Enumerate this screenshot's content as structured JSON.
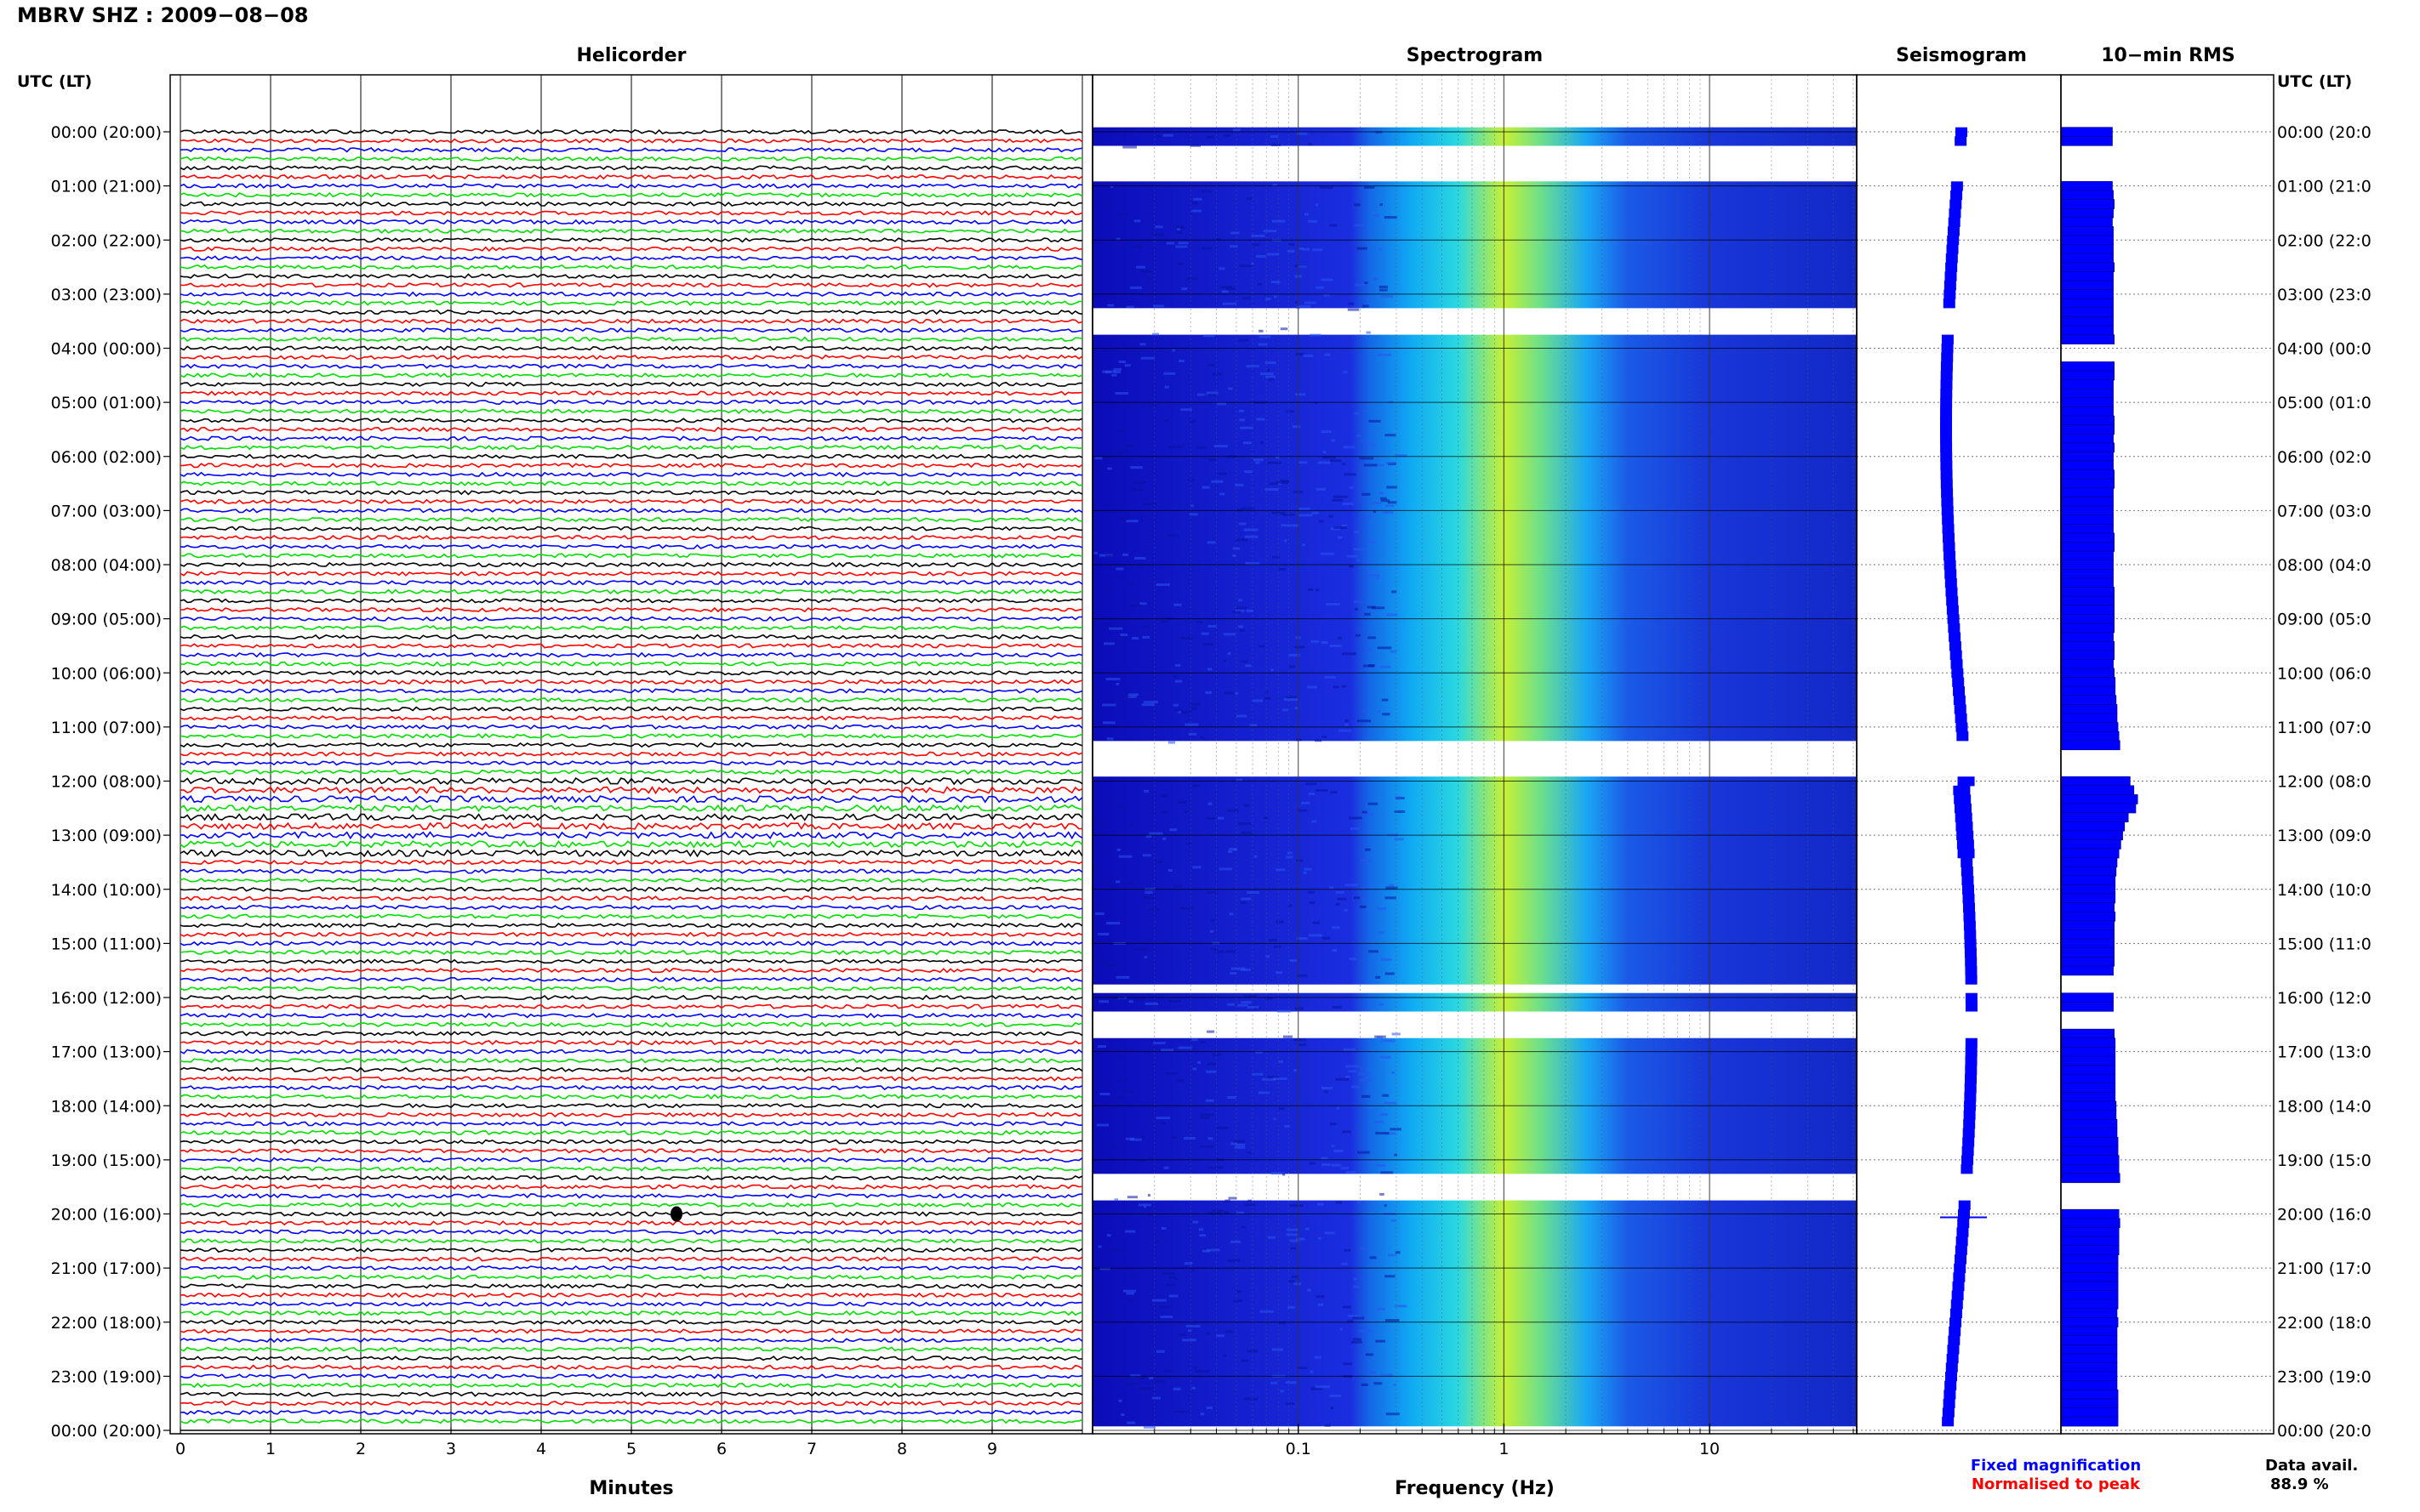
{
  "title": "MBRV SHZ : 2009−08−08",
  "time_axis_label": "UTC (LT)",
  "panels": {
    "helicorder": "Helicorder",
    "spectrogram": "Spectrogram",
    "seismogram": "Seismogram",
    "rms": "10−min RMS"
  },
  "x_labels": {
    "minutes": "Minutes",
    "frequency": "Frequency (Hz)"
  },
  "legend": {
    "fixed": "Fixed magnification",
    "normalised": "Normalised to peak",
    "fixed_color": "#0000ff",
    "normalised_color": "#ff0000"
  },
  "data_availability": {
    "label": "Data avail.",
    "value": "88.9 %"
  },
  "colors": {
    "trace_cycle": [
      "#000000",
      "#ff0000",
      "#0000ff",
      "#00dd00"
    ],
    "spectrogram_low": "#1010d0",
    "spectrogram_mid": "#00c8ff",
    "spectrogram_high": "#d8f020"
  },
  "chart_data": {
    "type": "heatmap",
    "hour_labels": [
      "00:00 (20:00)",
      "01:00 (21:00)",
      "02:00 (22:00)",
      "03:00 (23:00)",
      "04:00 (00:00)",
      "05:00 (01:00)",
      "06:00 (02:00)",
      "07:00 (03:00)",
      "08:00 (04:00)",
      "09:00 (05:00)",
      "10:00 (06:00)",
      "11:00 (07:00)",
      "12:00 (08:00)",
      "13:00 (09:00)",
      "14:00 (10:00)",
      "15:00 (11:00)",
      "16:00 (12:00)",
      "17:00 (13:00)",
      "18:00 (14:00)",
      "19:00 (15:00)",
      "20:00 (16:00)",
      "21:00 (17:00)",
      "22:00 (18:00)",
      "23:00 (19:00)",
      "00:00 (20:00)"
    ],
    "right_hour_labels": [
      "00:00 (20:0",
      "01:00 (21:0",
      "02:00 (22:0",
      "03:00 (23:0",
      "04:00 (00:0",
      "05:00 (01:0",
      "06:00 (02:0",
      "07:00 (03:0",
      "08:00 (04:0",
      "09:00 (05:0",
      "10:00 (06:0",
      "11:00 (07:0",
      "12:00 (08:0",
      "13:00 (09:0",
      "14:00 (10:0",
      "15:00 (11:0",
      "16:00 (12:0",
      "17:00 (13:0",
      "18:00 (14:0",
      "19:00 (15:0",
      "20:00 (16:0",
      "21:00 (17:0",
      "22:00 (18:0",
      "23:00 (19:0",
      "00:00 (20:0"
    ],
    "minute_ticks": [
      "0",
      "1",
      "2",
      "3",
      "4",
      "5",
      "6",
      "7",
      "8",
      "9"
    ],
    "minute_range": [
      0,
      10
    ],
    "frequency_ticks": [
      "0.1",
      "1",
      "10"
    ],
    "frequency_range": [
      0.01,
      50
    ],
    "frequency_scale": "log",
    "time_range_hours": [
      0,
      24
    ],
    "rows_per_hour": 6,
    "gaps_hours": [
      [
        0.33,
        1.0
      ],
      [
        3.33,
        3.67
      ],
      [
        11.33,
        12.0
      ],
      [
        15.67,
        16.0
      ],
      [
        16.33,
        16.67
      ],
      [
        19.33,
        19.67
      ]
    ],
    "rms_relative": [
      0.55,
      0.55,
      0,
      0,
      0,
      0,
      0.55,
      0.56,
      0.57,
      0.56,
      0.55,
      0.56,
      0.56,
      0.56,
      0.56,
      0.57,
      0.56,
      0.56,
      0.56,
      0.56,
      0.56,
      0.56,
      0.56,
      0.57,
      0,
      0,
      0.57,
      0.57,
      0.56,
      0.56,
      0.56,
      0.56,
      0.57,
      0.57,
      0.56,
      0.57,
      0.56,
      0.56,
      0.57,
      0.57,
      0.56,
      0.56,
      0.56,
      0.56,
      0.56,
      0.57,
      0.57,
      0.56,
      0.56,
      0.56,
      0.56,
      0.57,
      0.57,
      0.57,
      0.57,
      0.57,
      0.56,
      0.57,
      0.57,
      0.56,
      0.57,
      0.58,
      0.58,
      0.59,
      0.6,
      0.6,
      0.61,
      0.62,
      0.63,
      0.0,
      0,
      0,
      0.74,
      0.78,
      0.82,
      0.8,
      0.72,
      0.68,
      0.66,
      0.64,
      0.62,
      0.6,
      0.59,
      0.58,
      0.58,
      0.58,
      0.57,
      0.58,
      0.57,
      0.57,
      0.57,
      0.57,
      0.57,
      0.56,
      0.0,
      0,
      0.56,
      0.56,
      0,
      0,
      0.57,
      0.58,
      0.58,
      0.58,
      0.58,
      0.58,
      0.58,
      0.58,
      0.59,
      0.59,
      0.6,
      0.6,
      0.61,
      0.61,
      0.62,
      0.62,
      0.63,
      0,
      0,
      0,
      0.62,
      0.63,
      0.62,
      0.62,
      0.62,
      0.61,
      0.61,
      0.61,
      0.61,
      0.61,
      0.61,
      0.6,
      0.61,
      0.6,
      0.6,
      0.6,
      0.6,
      0.6,
      0.6,
      0.6,
      0.61,
      0.61,
      0.61,
      0.61
    ],
    "event_hours": [
      20.0
    ]
  }
}
